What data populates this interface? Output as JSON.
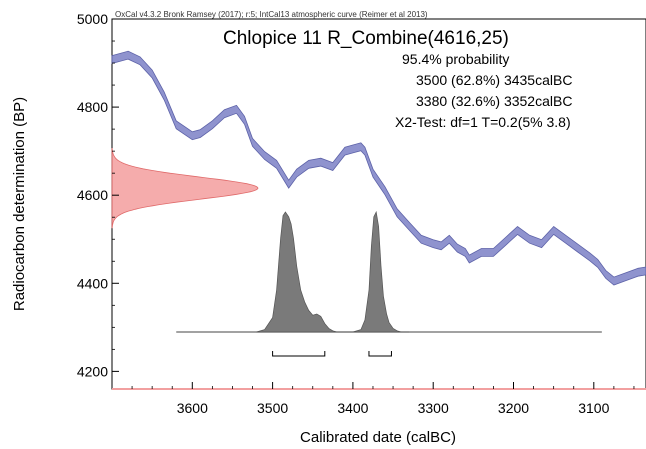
{
  "chart_data": {
    "type": "area",
    "header_text": "OxCal v4.3.2 Bronk Ramsey (2017); r:5; IntCal13 atmospheric curve (Reimer et al 2013)",
    "title": "Chlopice 11 R_Combine(4616,25)",
    "results": [
      "95.4% probability",
      "3500 (62.8%) 3435calBC",
      "3380 (32.6%) 3352calBC",
      "X2-Test: df=1 T=0.2(5% 3.8)"
    ],
    "xlabel": "Calibrated date (calBC)",
    "ylabel": "Radiocarbon determination (BP)",
    "xlim": [
      3700,
      3035
    ],
    "ylim": [
      4160,
      5000
    ],
    "xticks": [
      3600,
      3500,
      3400,
      3300,
      3200,
      3100
    ],
    "yticks": [
      4200,
      4400,
      4600,
      4800,
      5000
    ],
    "radiocarbon_date": {
      "mean": 4616,
      "sd": 25
    },
    "calibration_curve": {
      "name": "IntCal13",
      "color": "#8a8fd0",
      "x": [
        3700,
        3680,
        3665,
        3650,
        3635,
        3620,
        3600,
        3590,
        3575,
        3560,
        3545,
        3535,
        3525,
        3510,
        3495,
        3480,
        3470,
        3455,
        3440,
        3425,
        3410,
        3400,
        3390,
        3385,
        3375,
        3360,
        3345,
        3330,
        3315,
        3300,
        3290,
        3280,
        3270,
        3260,
        3255,
        3240,
        3225,
        3210,
        3195,
        3180,
        3165,
        3150,
        3135,
        3120,
        3105,
        3095,
        3085,
        3075,
        3060,
        3045,
        3035
      ],
      "y": [
        4908,
        4918,
        4905,
        4875,
        4825,
        4760,
        4735,
        4740,
        4760,
        4785,
        4795,
        4770,
        4720,
        4690,
        4670,
        4625,
        4650,
        4670,
        4675,
        4665,
        4700,
        4705,
        4710,
        4700,
        4650,
        4610,
        4560,
        4530,
        4500,
        4490,
        4485,
        4500,
        4480,
        4470,
        4455,
        4470,
        4470,
        4495,
        4520,
        4500,
        4490,
        4520,
        4500,
        4480,
        4460,
        4445,
        4420,
        4405,
        4415,
        4425,
        4428
      ]
    },
    "posterior_distribution": {
      "name": "Calibrated date",
      "color": "#808080",
      "x": [
        3520,
        3510,
        3500,
        3495,
        3490,
        3487,
        3484,
        3480,
        3477,
        3474,
        3470,
        3465,
        3460,
        3455,
        3450,
        3445,
        3440,
        3435,
        3430,
        3425,
        3420,
        3410,
        3400,
        3390,
        3385,
        3380,
        3377,
        3374,
        3371,
        3368,
        3365,
        3362,
        3358,
        3355,
        3350,
        3345,
        3340,
        3330
      ],
      "density": [
        0.0,
        0.02,
        0.12,
        0.35,
        0.78,
        0.97,
        1.0,
        0.96,
        0.9,
        0.78,
        0.55,
        0.35,
        0.25,
        0.18,
        0.14,
        0.15,
        0.13,
        0.07,
        0.03,
        0.01,
        0.0,
        0.0,
        0.0,
        0.02,
        0.1,
        0.35,
        0.72,
        0.96,
        1.0,
        0.88,
        0.55,
        0.3,
        0.15,
        0.08,
        0.03,
        0.01,
        0.0,
        0.0
      ]
    },
    "ranges_95": [
      [
        3500,
        3435
      ],
      [
        3380,
        3352
      ]
    ],
    "colors": {
      "curve": "#8a8fd0",
      "curve_fill": "#7b80c6",
      "measurement": "#f08080",
      "posterior": "#7a7a7a"
    },
    "grid": false
  }
}
